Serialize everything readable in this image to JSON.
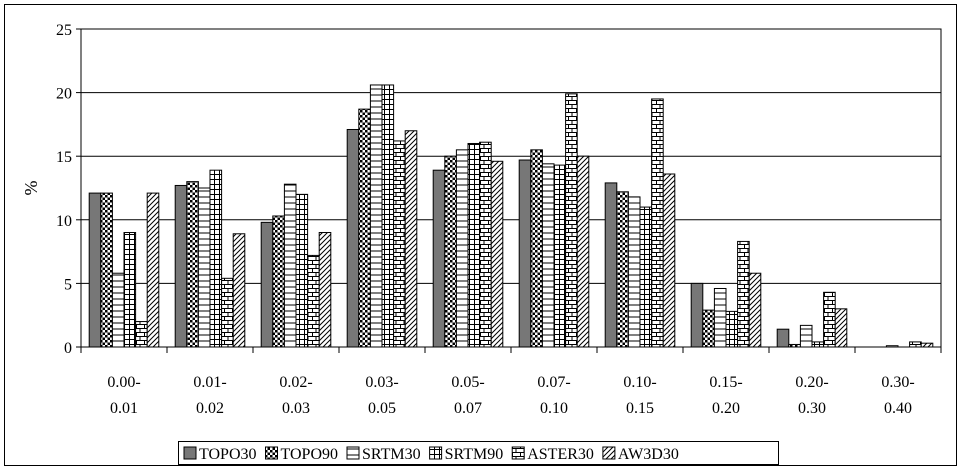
{
  "chart_data": {
    "type": "bar",
    "title": "",
    "xlabel": "",
    "ylabel": "%",
    "ylim": [
      0,
      25
    ],
    "yticks": [
      0,
      5,
      10,
      15,
      20,
      25
    ],
    "grid": true,
    "legend_position": "bottom",
    "categories": [
      [
        "0.00-",
        "0.01"
      ],
      [
        "0.01-",
        "0.02"
      ],
      [
        "0.02-",
        "0.03"
      ],
      [
        "0.03-",
        "0.05"
      ],
      [
        "0.05-",
        "0.07"
      ],
      [
        "0.07-",
        "0.10"
      ],
      [
        "0.10-",
        "0.15"
      ],
      [
        "0.15-",
        "0.20"
      ],
      [
        "0.20-",
        "0.30"
      ],
      [
        "0.30-",
        "0.40"
      ]
    ],
    "series": [
      {
        "name": "TOPO30",
        "pattern": "solid-gray",
        "values": [
          12.1,
          12.7,
          9.8,
          17.1,
          13.9,
          14.7,
          12.9,
          5.0,
          1.4,
          0.0
        ]
      },
      {
        "name": "TOPO90",
        "pattern": "dots",
        "values": [
          12.1,
          13.0,
          10.3,
          18.7,
          15.0,
          15.5,
          12.2,
          2.9,
          0.2,
          0.0
        ]
      },
      {
        "name": "SRTM30",
        "pattern": "horizontal-lines",
        "values": [
          5.8,
          12.5,
          12.8,
          20.6,
          15.5,
          14.4,
          11.8,
          4.6,
          1.7,
          0.1
        ]
      },
      {
        "name": "SRTM90",
        "pattern": "grid",
        "values": [
          9.0,
          13.9,
          12.0,
          20.6,
          16.0,
          14.3,
          11.0,
          2.8,
          0.4,
          0.0
        ]
      },
      {
        "name": "ASTER30",
        "pattern": "brick",
        "values": [
          2.0,
          5.4,
          7.2,
          16.2,
          16.1,
          19.9,
          19.5,
          8.3,
          4.3,
          0.4
        ]
      },
      {
        "name": "AW3D30",
        "pattern": "diagonal",
        "values": [
          12.1,
          8.9,
          9.0,
          17.0,
          14.6,
          15.0,
          13.6,
          5.8,
          3.0,
          0.3
        ]
      }
    ]
  }
}
